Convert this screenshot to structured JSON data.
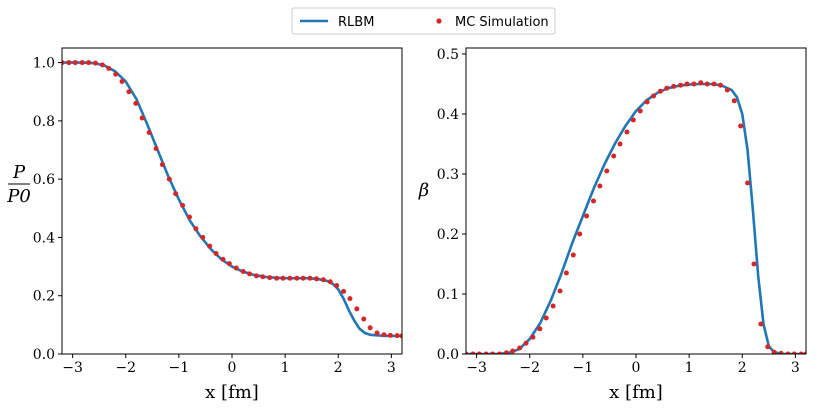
{
  "colors": {
    "line": "#1f77b4",
    "marker": "#d62728"
  },
  "legend": {
    "line_label": "RLBM",
    "marker_label": "MC Simulation"
  },
  "chart_data": [
    {
      "type": "line",
      "panel": "left",
      "xlabel": "x [fm]",
      "ylabel_num": "P",
      "ylabel_den": "P0",
      "xlim": [
        -3.2,
        3.2
      ],
      "ylim": [
        0.0,
        1.05
      ],
      "xticks": [
        -3,
        -2,
        -1,
        0,
        1,
        2,
        3
      ],
      "xtick_labels": [
        "−3",
        "−2",
        "−1",
        "0",
        "1",
        "2",
        "3"
      ],
      "yticks": [
        0.0,
        0.2,
        0.4,
        0.6,
        0.8,
        1.0
      ],
      "ytick_labels": [
        "0.0",
        "0.2",
        "0.4",
        "0.6",
        "0.8",
        "1.0"
      ],
      "series": [
        {
          "name": "RLBM",
          "kind": "line",
          "x": [
            -3.2,
            -3.0,
            -2.8,
            -2.6,
            -2.4,
            -2.2,
            -2.0,
            -1.8,
            -1.6,
            -1.4,
            -1.2,
            -1.0,
            -0.8,
            -0.6,
            -0.4,
            -0.2,
            0.0,
            0.2,
            0.4,
            0.6,
            0.8,
            1.0,
            1.2,
            1.4,
            1.6,
            1.8,
            1.9,
            2.0,
            2.1,
            2.2,
            2.3,
            2.4,
            2.5,
            2.6,
            2.8,
            3.0,
            3.2
          ],
          "y": [
            1.0,
            1.0,
            1.0,
            0.998,
            0.99,
            0.97,
            0.935,
            0.875,
            0.79,
            0.7,
            0.61,
            0.53,
            0.46,
            0.405,
            0.36,
            0.325,
            0.3,
            0.283,
            0.272,
            0.265,
            0.262,
            0.26,
            0.26,
            0.26,
            0.258,
            0.25,
            0.24,
            0.222,
            0.19,
            0.15,
            0.115,
            0.087,
            0.072,
            0.066,
            0.063,
            0.062,
            0.062
          ]
        },
        {
          "name": "MC Simulation",
          "kind": "scatter",
          "x": [
            -3.2,
            -3.07,
            -2.95,
            -2.82,
            -2.7,
            -2.57,
            -2.44,
            -2.32,
            -2.19,
            -2.07,
            -1.94,
            -1.81,
            -1.69,
            -1.56,
            -1.43,
            -1.31,
            -1.18,
            -1.06,
            -0.93,
            -0.8,
            -0.68,
            -0.55,
            -0.42,
            -0.3,
            -0.17,
            -0.05,
            0.08,
            0.21,
            0.33,
            0.46,
            0.58,
            0.71,
            0.84,
            0.96,
            1.09,
            1.22,
            1.34,
            1.47,
            1.59,
            1.72,
            1.85,
            1.97,
            2.1,
            2.22,
            2.35,
            2.48,
            2.6,
            2.73,
            2.86,
            2.98,
            3.11,
            3.2
          ],
          "y": [
            1.0,
            1.0,
            1.0,
            1.0,
            1.0,
            0.998,
            0.992,
            0.98,
            0.96,
            0.935,
            0.9,
            0.86,
            0.81,
            0.76,
            0.705,
            0.65,
            0.6,
            0.55,
            0.51,
            0.47,
            0.43,
            0.4,
            0.37,
            0.345,
            0.325,
            0.31,
            0.295,
            0.283,
            0.275,
            0.268,
            0.265,
            0.262,
            0.26,
            0.26,
            0.26,
            0.26,
            0.26,
            0.26,
            0.258,
            0.255,
            0.248,
            0.235,
            0.215,
            0.19,
            0.155,
            0.12,
            0.09,
            0.072,
            0.066,
            0.064,
            0.063,
            0.062
          ]
        }
      ]
    },
    {
      "type": "line",
      "panel": "right",
      "xlabel": "x [fm]",
      "ylabel": "β",
      "xlim": [
        -3.2,
        3.2
      ],
      "ylim": [
        0.0,
        0.51
      ],
      "xticks": [
        -3,
        -2,
        -1,
        0,
        1,
        2,
        3
      ],
      "xtick_labels": [
        "−3",
        "−2",
        "−1",
        "0",
        "1",
        "2",
        "3"
      ],
      "yticks": [
        0.0,
        0.1,
        0.2,
        0.3,
        0.4,
        0.5
      ],
      "ytick_labels": [
        "0.0",
        "0.1",
        "0.2",
        "0.3",
        "0.4",
        "0.5"
      ],
      "series": [
        {
          "name": "RLBM",
          "kind": "line",
          "x": [
            -3.2,
            -3.0,
            -2.8,
            -2.6,
            -2.4,
            -2.2,
            -2.0,
            -1.8,
            -1.6,
            -1.4,
            -1.2,
            -1.0,
            -0.8,
            -0.6,
            -0.4,
            -0.2,
            0.0,
            0.2,
            0.4,
            0.6,
            0.8,
            1.0,
            1.2,
            1.4,
            1.6,
            1.8,
            1.9,
            2.0,
            2.1,
            2.2,
            2.3,
            2.4,
            2.5,
            2.6,
            2.7,
            2.8,
            3.0,
            3.2
          ],
          "y": [
            0.0,
            0.0,
            0.0,
            0.0,
            0.002,
            0.008,
            0.025,
            0.052,
            0.09,
            0.135,
            0.185,
            0.23,
            0.275,
            0.315,
            0.35,
            0.38,
            0.405,
            0.423,
            0.435,
            0.443,
            0.447,
            0.449,
            0.45,
            0.45,
            0.448,
            0.44,
            0.428,
            0.4,
            0.34,
            0.24,
            0.13,
            0.05,
            0.013,
            0.003,
            0.001,
            0.0,
            0.0,
            0.0
          ]
        },
        {
          "name": "MC Simulation",
          "kind": "scatter",
          "x": [
            -3.2,
            -3.07,
            -2.95,
            -2.82,
            -2.7,
            -2.57,
            -2.44,
            -2.32,
            -2.19,
            -2.07,
            -1.94,
            -1.81,
            -1.69,
            -1.56,
            -1.43,
            -1.31,
            -1.18,
            -1.06,
            -0.93,
            -0.8,
            -0.68,
            -0.55,
            -0.42,
            -0.3,
            -0.17,
            -0.05,
            0.08,
            0.21,
            0.33,
            0.46,
            0.58,
            0.71,
            0.84,
            0.96,
            1.09,
            1.22,
            1.34,
            1.47,
            1.59,
            1.72,
            1.85,
            1.97,
            2.1,
            2.22,
            2.35,
            2.48,
            2.6,
            2.73,
            2.86,
            2.98,
            3.11,
            3.2
          ],
          "y": [
            0.0,
            0.0,
            0.0,
            0.0,
            0.0,
            0.0,
            0.002,
            0.005,
            0.01,
            0.018,
            0.028,
            0.042,
            0.06,
            0.08,
            0.105,
            0.135,
            0.165,
            0.2,
            0.23,
            0.255,
            0.28,
            0.305,
            0.33,
            0.35,
            0.37,
            0.39,
            0.405,
            0.42,
            0.43,
            0.438,
            0.443,
            0.446,
            0.448,
            0.45,
            0.45,
            0.452,
            0.45,
            0.45,
            0.448,
            0.44,
            0.422,
            0.38,
            0.285,
            0.15,
            0.05,
            0.012,
            0.003,
            0.001,
            0.0,
            0.0,
            0.0,
            0.0
          ]
        }
      ]
    }
  ]
}
